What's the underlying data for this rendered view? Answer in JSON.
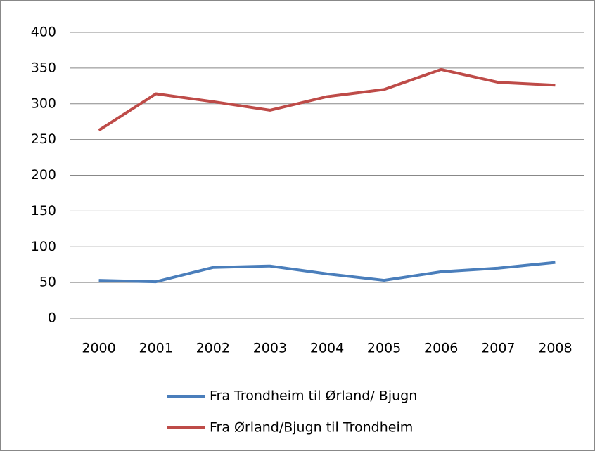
{
  "chart_data": {
    "type": "line",
    "categories": [
      "2000",
      "2001",
      "2002",
      "2003",
      "2004",
      "2005",
      "2006",
      "2007",
      "2008"
    ],
    "series": [
      {
        "name": "Fra Trondheim til Ørland/ Bjugn",
        "color": "#4a7ebb",
        "values": [
          53,
          51,
          71,
          73,
          62,
          53,
          65,
          70,
          78
        ]
      },
      {
        "name": "Fra Ørland/Bjugn til Trondheim",
        "color": "#be4b48",
        "values": [
          263,
          314,
          303,
          291,
          310,
          320,
          348,
          330,
          326
        ]
      }
    ],
    "ylim": [
      0,
      400
    ],
    "yticks": [
      0,
      50,
      100,
      150,
      200,
      250,
      300,
      350,
      400
    ],
    "grid": true,
    "legend": "bottom"
  }
}
